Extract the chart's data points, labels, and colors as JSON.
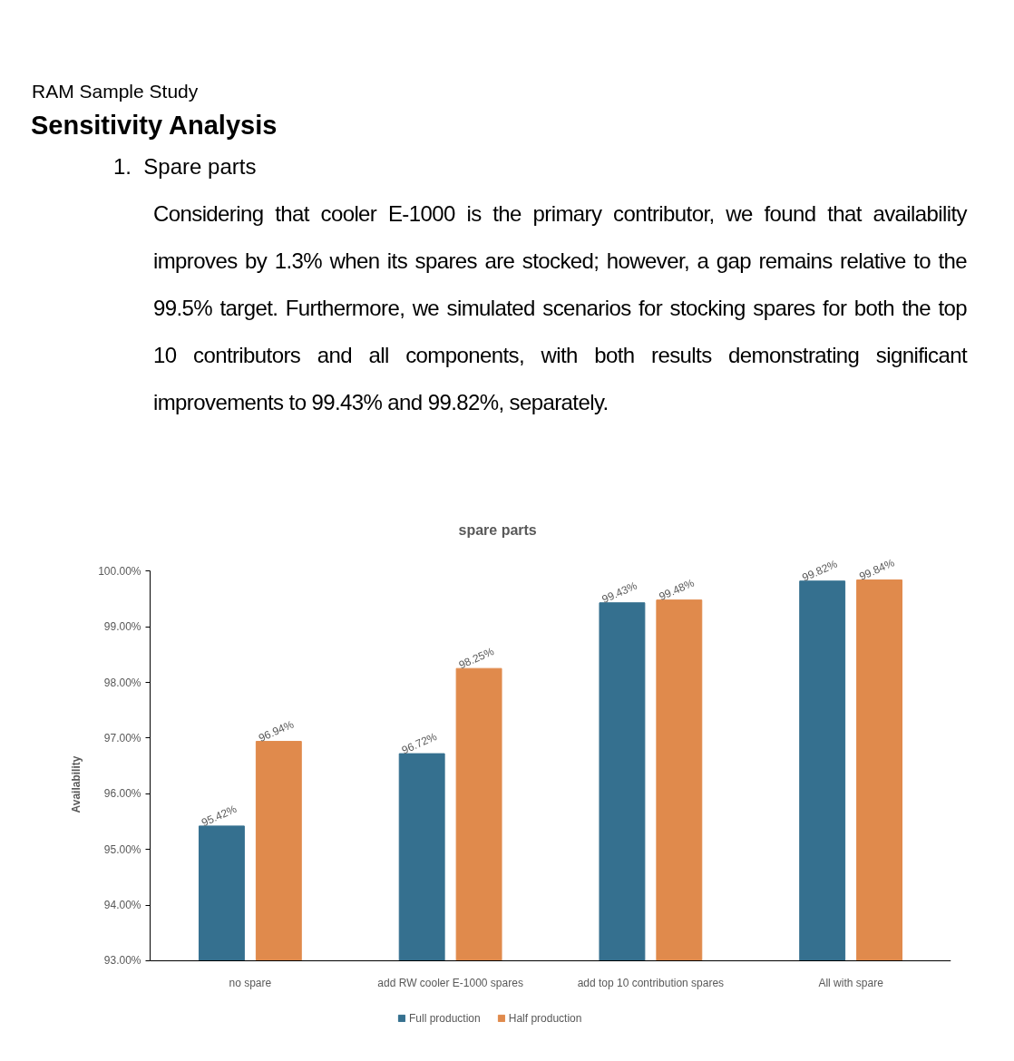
{
  "chart_data": {
    "type": "bar",
    "title": "spare parts",
    "ylabel": "Availability",
    "annotations": [
      "RAM Sample Study",
      "Sensitivity Analysis",
      "1.  Spare parts",
      "Considering that cooler E-1000 is the primary contributor, we found that availability improves by 1.3% when its spares are stocked; however, a gap remains relative to the 99.5% target. Furthermore, we simulated scenarios for stocking spares for both the top 10 contributors and all components, with both results demonstrating significant improvements to 99.43% and 99.82%, separately."
    ],
    "categories": [
      "no spare",
      "add RW cooler E-1000 spares",
      "add top 10 contribution spares",
      "All with spare"
    ],
    "series": [
      {
        "name": "Full production",
        "color": "#35708f",
        "values": [
          95.42,
          96.72,
          99.43,
          99.82
        ],
        "value_labels": [
          "95.42%",
          "96.72%",
          "99.43%",
          "99.82%"
        ]
      },
      {
        "name": "Half production",
        "color": "#e08a4c",
        "values": [
          96.94,
          98.25,
          99.48,
          99.84
        ],
        "value_labels": [
          "96.94%",
          "98.25%",
          "99.48%",
          "99.84%"
        ]
      }
    ],
    "ylim": [
      93,
      100
    ],
    "yticks": [
      {
        "value": 93,
        "label": "93.00%"
      },
      {
        "value": 94,
        "label": "94.00%"
      },
      {
        "value": 95,
        "label": "95.00%"
      },
      {
        "value": 96,
        "label": "96.00%"
      },
      {
        "value": 97,
        "label": "97.00%"
      },
      {
        "value": 98,
        "label": "98.00%"
      },
      {
        "value": 99,
        "label": "99.00%"
      },
      {
        "value": 100,
        "label": "100.00%"
      }
    ],
    "legend": "bottom"
  }
}
